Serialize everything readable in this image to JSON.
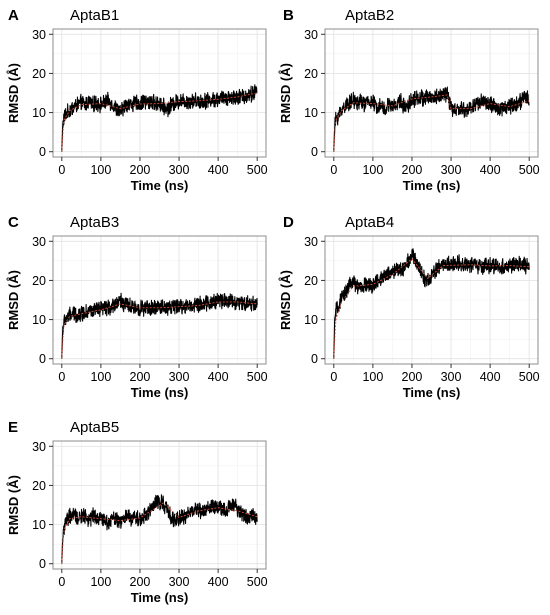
{
  "colors": {
    "raw": "#000000",
    "smooth": "#d9523b",
    "grid": "#e4e4e4"
  },
  "chart_data": [
    {
      "type": "line",
      "panel": "A",
      "title": "AptaB1",
      "xlabel": "Time (ns)",
      "ylabel": "RMSD (Å)",
      "xlim": [
        0,
        500
      ],
      "ylim": [
        0,
        30
      ],
      "xticks": [
        0,
        100,
        200,
        300,
        400,
        500
      ],
      "yticks": [
        0,
        10,
        20,
        30
      ],
      "grid": true,
      "series": [
        {
          "role": "raw",
          "x": [
            0,
            2,
            5,
            10,
            20,
            30,
            40,
            50,
            60,
            70,
            80,
            90,
            100,
            110,
            120,
            130,
            140,
            150,
            160,
            170,
            180,
            190,
            200,
            210,
            220,
            230,
            240,
            250,
            260,
            270,
            280,
            290,
            300,
            320,
            340,
            360,
            380,
            400,
            420,
            440,
            460,
            480,
            490,
            500
          ],
          "y": [
            0,
            6,
            8.5,
            9.5,
            10.5,
            11.5,
            12,
            12.5,
            12,
            13,
            12,
            12.5,
            12,
            12.5,
            13,
            12,
            11,
            10,
            11.5,
            12.5,
            12,
            12.5,
            12,
            13,
            12.5,
            13,
            12,
            12.5,
            11.5,
            11,
            12,
            12.5,
            13,
            13,
            13,
            13,
            13.2,
            13.5,
            13.8,
            14,
            14,
            14.5,
            15,
            15.5
          ]
        },
        {
          "role": "smooth",
          "x": [
            0,
            5,
            20,
            50,
            100,
            150,
            200,
            250,
            300,
            350,
            400,
            450,
            500
          ],
          "y": [
            0,
            8,
            10.5,
            12,
            12.3,
            11,
            12.2,
            12.3,
            12.8,
            13,
            13.4,
            14,
            15
          ]
        }
      ]
    },
    {
      "type": "line",
      "panel": "B",
      "title": "AptaB2",
      "xlabel": "Time (ns)",
      "ylabel": "RMSD (Å)",
      "xlim": [
        0,
        500
      ],
      "ylim": [
        0,
        30
      ],
      "xticks": [
        0,
        100,
        200,
        300,
        400,
        500
      ],
      "yticks": [
        0,
        10,
        20,
        30
      ],
      "grid": true,
      "series": [
        {
          "role": "raw",
          "x": [
            0,
            2,
            5,
            10,
            20,
            30,
            40,
            50,
            60,
            70,
            80,
            90,
            100,
            110,
            120,
            130,
            140,
            150,
            160,
            170,
            180,
            190,
            200,
            210,
            220,
            230,
            240,
            250,
            260,
            270,
            280,
            290,
            300,
            310,
            320,
            340,
            360,
            380,
            400,
            420,
            440,
            460,
            480,
            490,
            500
          ],
          "y": [
            0,
            6,
            8,
            9,
            10.5,
            12,
            12.5,
            13,
            12.5,
            13,
            12,
            13,
            12.5,
            11.5,
            12,
            10.5,
            12,
            11.5,
            12,
            13,
            11.5,
            12,
            13.5,
            13.5,
            14,
            13.5,
            14,
            13.8,
            14,
            14.2,
            14.5,
            15,
            11,
            10.5,
            11,
            10.5,
            12,
            13,
            12,
            11,
            11.5,
            12,
            13,
            14,
            13
          ]
        },
        {
          "role": "smooth",
          "x": [
            0,
            5,
            20,
            50,
            100,
            150,
            200,
            250,
            290,
            300,
            350,
            400,
            450,
            500
          ],
          "y": [
            0,
            8,
            10.5,
            12.5,
            12.3,
            11.7,
            13.5,
            14,
            14.5,
            11,
            11,
            12.3,
            11.5,
            13
          ]
        }
      ]
    },
    {
      "type": "line",
      "panel": "C",
      "title": "AptaB3",
      "xlabel": "Time (ns)",
      "ylabel": "RMSD (Å)",
      "xlim": [
        0,
        500
      ],
      "ylim": [
        0,
        30
      ],
      "xticks": [
        0,
        100,
        200,
        300,
        400,
        500
      ],
      "yticks": [
        0,
        10,
        20,
        30
      ],
      "grid": true,
      "series": [
        {
          "role": "raw",
          "x": [
            0,
            2,
            5,
            10,
            20,
            30,
            40,
            50,
            60,
            70,
            80,
            90,
            100,
            110,
            120,
            130,
            140,
            150,
            160,
            170,
            180,
            200,
            220,
            240,
            260,
            280,
            300,
            320,
            340,
            360,
            380,
            400,
            420,
            440,
            460,
            480,
            500
          ],
          "y": [
            0,
            7,
            9,
            10,
            11,
            11.5,
            11,
            11.5,
            12,
            12.5,
            12,
            12.5,
            12.5,
            13,
            13,
            13.5,
            14,
            15,
            14,
            13.5,
            13,
            13,
            12.8,
            13,
            13.2,
            13.2,
            13.3,
            13.5,
            13.8,
            14,
            14.2,
            15,
            15,
            14.5,
            14.2,
            14.2,
            14
          ]
        },
        {
          "role": "smooth",
          "x": [
            0,
            5,
            20,
            50,
            100,
            150,
            200,
            250,
            300,
            350,
            400,
            450,
            500
          ],
          "y": [
            0,
            8.5,
            10.8,
            11.5,
            12.5,
            14,
            13,
            13,
            13.3,
            13.6,
            14.5,
            14.5,
            14
          ]
        }
      ]
    },
    {
      "type": "line",
      "panel": "D",
      "title": "AptaB4",
      "xlabel": "Time (ns)",
      "ylabel": "RMSD (Å)",
      "xlim": [
        0,
        500
      ],
      "ylim": [
        0,
        30
      ],
      "xticks": [
        0,
        100,
        200,
        300,
        400,
        500
      ],
      "yticks": [
        0,
        10,
        20,
        30
      ],
      "grid": true,
      "series": [
        {
          "role": "raw",
          "x": [
            0,
            2,
            5,
            10,
            20,
            30,
            40,
            50,
            60,
            70,
            80,
            90,
            100,
            110,
            120,
            130,
            140,
            150,
            160,
            170,
            180,
            190,
            200,
            210,
            220,
            230,
            240,
            250,
            260,
            270,
            280,
            300,
            320,
            340,
            360,
            380,
            400,
            420,
            440,
            460,
            480,
            500
          ],
          "y": [
            0,
            9,
            12,
            13,
            15,
            17,
            19,
            19.5,
            18.5,
            18,
            19,
            18.5,
            19,
            19.5,
            20,
            21,
            22,
            22,
            23,
            22.5,
            23.5,
            25,
            26.5,
            25,
            23,
            21,
            19.5,
            21,
            22.5,
            23.5,
            24,
            24,
            24.5,
            24,
            24,
            23.5,
            23.8,
            23.5,
            23.5,
            24,
            24,
            23.5
          ]
        },
        {
          "role": "smooth",
          "x": [
            0,
            5,
            20,
            50,
            100,
            150,
            200,
            240,
            280,
            350,
            400,
            450,
            500
          ],
          "y": [
            0,
            10,
            14.5,
            18.5,
            19,
            21.5,
            25.5,
            20.5,
            23.8,
            24,
            23.7,
            23.8,
            23.5
          ]
        }
      ]
    },
    {
      "type": "line",
      "panel": "E",
      "title": "AptaB5",
      "xlabel": "Time (ns)",
      "ylabel": "RMSD (Å)",
      "xlim": [
        0,
        500
      ],
      "ylim": [
        0,
        30
      ],
      "xticks": [
        0,
        100,
        200,
        300,
        400,
        500
      ],
      "yticks": [
        0,
        10,
        20,
        30
      ],
      "grid": true,
      "series": [
        {
          "role": "raw",
          "x": [
            0,
            2,
            5,
            10,
            20,
            30,
            40,
            50,
            60,
            70,
            80,
            90,
            100,
            110,
            120,
            130,
            140,
            150,
            160,
            170,
            180,
            190,
            200,
            210,
            220,
            230,
            240,
            250,
            260,
            270,
            280,
            290,
            300,
            310,
            320,
            340,
            360,
            380,
            400,
            420,
            440,
            460,
            480,
            490,
            500
          ],
          "y": [
            0,
            6,
            9,
            10.5,
            12,
            12.5,
            11.5,
            12,
            12.5,
            11,
            12.5,
            11.5,
            12,
            11,
            10.5,
            12,
            11,
            10.5,
            11.5,
            12,
            11.5,
            12,
            11,
            12.5,
            13,
            14,
            15.5,
            16,
            15.5,
            13.5,
            12,
            11,
            12,
            11.5,
            12.5,
            14,
            13.5,
            14.5,
            14.5,
            13.5,
            15,
            13,
            11.5,
            12.5,
            12
          ]
        },
        {
          "role": "smooth",
          "x": [
            0,
            5,
            20,
            50,
            100,
            150,
            200,
            260,
            300,
            350,
            400,
            450,
            500
          ],
          "y": [
            0,
            8.5,
            11.5,
            12,
            11.5,
            11,
            11.7,
            15.5,
            11.8,
            13.5,
            14.3,
            13.5,
            12
          ]
        }
      ]
    }
  ]
}
